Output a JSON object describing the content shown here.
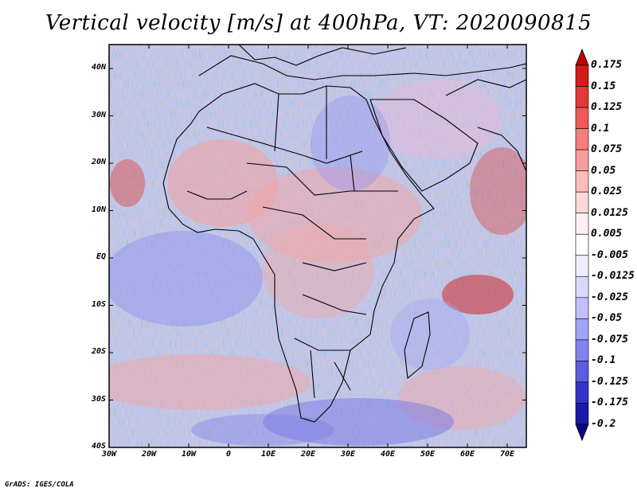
{
  "title": "Vertical velocity [m/s] at 400hPa, VT: 2020090815",
  "footer": "GrADS: IGES/COLA",
  "map": {
    "lat_labels": [
      "40N",
      "30N",
      "20N",
      "10N",
      "EQ",
      "10S",
      "20S",
      "30S",
      "40S"
    ],
    "lon_labels": [
      "30W",
      "20W",
      "10W",
      "0",
      "10E",
      "20E",
      "30E",
      "40E",
      "50E",
      "60E",
      "70E"
    ]
  },
  "colorbar": {
    "labels": [
      "0.175",
      "0.15",
      "0.125",
      "0.1",
      "0.075",
      "0.05",
      "0.025",
      "0.0125",
      "0.005",
      "-0.005",
      "-0.0125",
      "-0.025",
      "-0.05",
      "-0.075",
      "-0.1",
      "-0.125",
      "-0.175",
      "-0.2"
    ],
    "colors": [
      "#c00000",
      "#d41b1b",
      "#e23838",
      "#ee5a5a",
      "#f47d7d",
      "#f89d9d",
      "#fbbcbc",
      "#fdd8d8",
      "#fff0f0",
      "#ffffff",
      "#eeeeff",
      "#d9d9ff",
      "#c0c0ff",
      "#a2a2f8",
      "#8282ee",
      "#5c5ce0",
      "#3434c8",
      "#1a1aa8",
      "#0a0a80"
    ]
  }
}
